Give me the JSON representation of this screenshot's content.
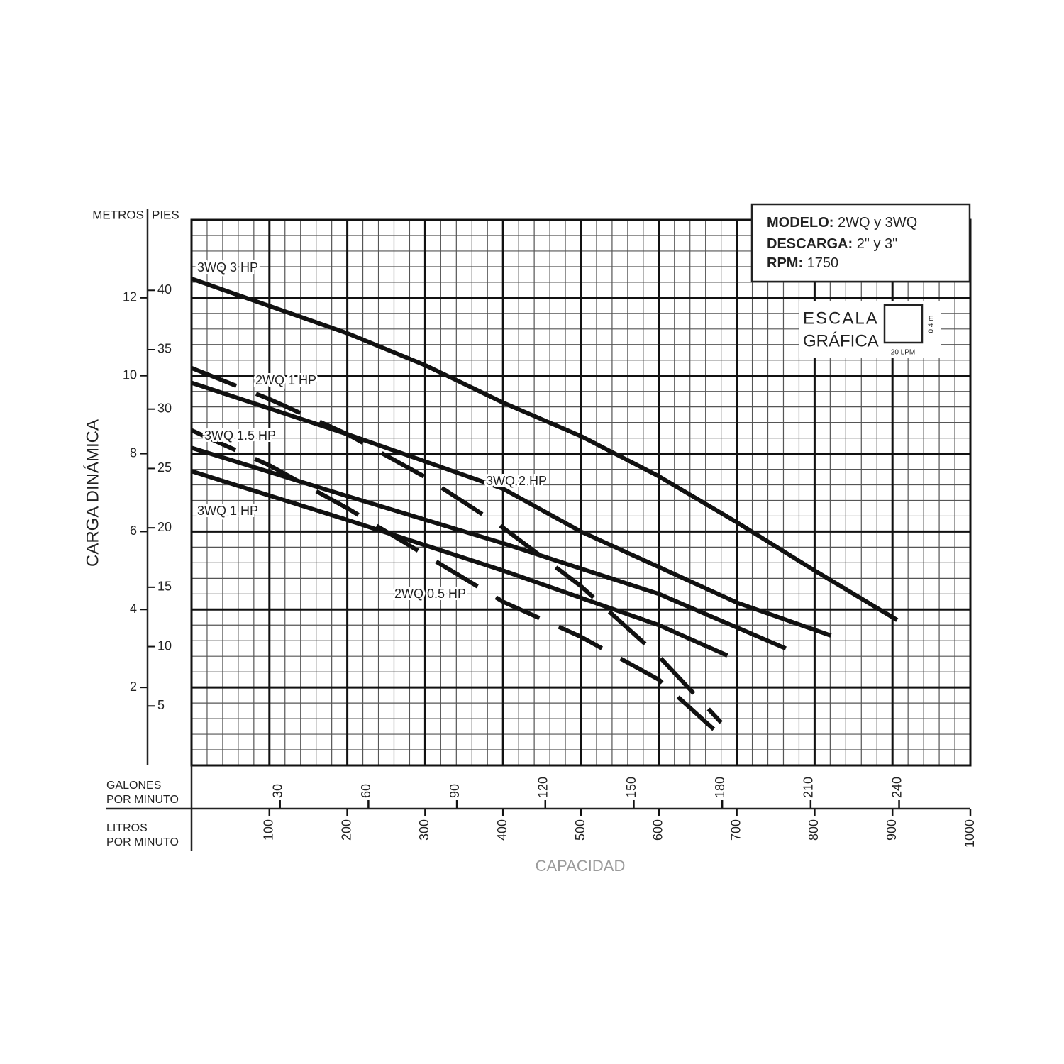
{
  "chart_data": {
    "type": "line",
    "y_label": "CARGA DINÁMICA",
    "y_unit": "METROS",
    "y2_unit": "PIES",
    "x_label": "CAPACIDAD",
    "x_unit": "LITROS POR MINUTO",
    "x2_unit": "GALONES POR MINUTO",
    "xlim": [
      0,
      1000
    ],
    "xticks": [
      100,
      200,
      300,
      400,
      500,
      600,
      700,
      800,
      900,
      1000
    ],
    "x2lim": [
      0,
      264.17
    ],
    "x2ticks": [
      30,
      60,
      90,
      120,
      150,
      180,
      210,
      240
    ],
    "ylim": [
      0,
      14
    ],
    "yticks": [
      2,
      4,
      6,
      8,
      10,
      12
    ],
    "y2lim": [
      0,
      45.93
    ],
    "y2ticks": [
      5,
      10,
      15,
      20,
      25,
      30,
      35,
      40
    ],
    "grid": true,
    "minor_grid": [
      20,
      0.4
    ],
    "info": {
      "model_label": "MODELO:",
      "model": "2WQ y 3WQ",
      "discharge_label": "DESCARGA:",
      "discharge": "2\" y 3\"",
      "rpm_label": "RPM:",
      "rpm": "1750"
    },
    "scale_box": {
      "title_1": "ESCALA",
      "title_2": "GRÁFICA",
      "y_step": "0.4 m",
      "x_step": "20 LPM"
    },
    "series": [
      {
        "name": "3WQ 3 HP",
        "color": "#111111",
        "style": "solid",
        "x": [
          0,
          200,
          300,
          400,
          500,
          600,
          700,
          800,
          906
        ],
        "values": [
          12.49,
          11.09,
          10.27,
          9.31,
          8.45,
          7.42,
          6.24,
          5.0,
          3.73
        ]
      },
      {
        "name": "2WQ 1 HP",
        "color": "#111111",
        "style": "dashed",
        "x": [
          0,
          100,
          200,
          300,
          400,
          500,
          600,
          680
        ],
        "values": [
          10.2,
          9.4,
          8.5,
          7.4,
          6.1,
          4.6,
          2.8,
          1.1
        ]
      },
      {
        "name": "3WQ 1.5 HP",
        "color": "#111111",
        "style": "solid",
        "x": [
          0,
          200,
          400,
          600,
          763
        ],
        "values": [
          8.15,
          6.91,
          5.7,
          4.4,
          3.0
        ]
      },
      {
        "name": "3WQ 2 HP",
        "color": "#111111",
        "style": "solid",
        "x": [
          0,
          200,
          400,
          500,
          600,
          700,
          821
        ],
        "values": [
          9.82,
          8.5,
          7.1,
          6.0,
          5.09,
          4.18,
          3.33
        ]
      },
      {
        "name": "3WQ 1 HP",
        "color": "#111111",
        "style": "solid",
        "x": [
          0,
          200,
          400,
          600,
          688
        ],
        "values": [
          7.55,
          6.3,
          5.0,
          3.6,
          2.82
        ]
      },
      {
        "name": "2WQ 0.5 HP",
        "color": "#111111",
        "style": "dashed",
        "x": [
          0,
          100,
          200,
          300,
          400,
          500,
          600,
          683
        ],
        "values": [
          8.6,
          7.7,
          6.6,
          5.4,
          4.2,
          3.3,
          2.2,
          0.7
        ]
      }
    ]
  }
}
